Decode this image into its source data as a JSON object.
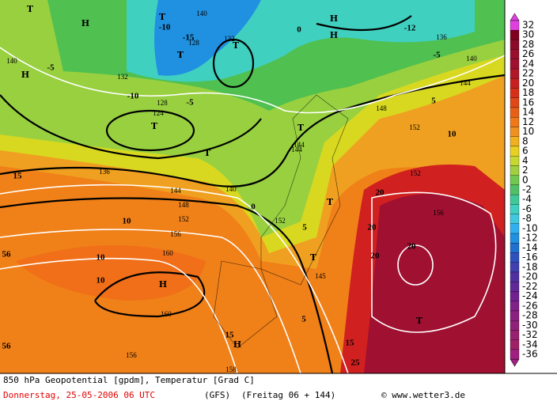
{
  "legend": {
    "labels": [
      "32",
      "30",
      "28",
      "26",
      "24",
      "22",
      "20",
      "18",
      "16",
      "14",
      "12",
      "10",
      "8",
      "6",
      "4",
      "2",
      "0",
      "-2",
      "-4",
      "-6",
      "-8",
      "-10",
      "-12",
      "-14",
      "-16",
      "-18",
      "-20",
      "-22",
      "-24",
      "-26",
      "-28",
      "-30",
      "-32",
      "-34",
      "-36"
    ]
  },
  "map_labels": [
    "T",
    "H",
    "T",
    "-10",
    "140",
    "T",
    "128",
    "T",
    "-15",
    "132",
    "H",
    "-12",
    "136",
    "140",
    "H",
    "-5",
    "132",
    "-10",
    "128",
    "T",
    "124",
    "-5",
    "0",
    "T",
    "144",
    "5",
    "148",
    "144",
    "152",
    "10",
    "T",
    "15",
    "136",
    "140",
    "144",
    "148",
    "152",
    "156",
    "160",
    "H",
    "10",
    "10",
    "20",
    "20",
    "20",
    "T",
    "T",
    "H",
    "15",
    "156",
    "156",
    "20",
    "T",
    "15",
    "25",
    "145",
    "152",
    "0",
    "5",
    "H",
    "-5",
    "140",
    "56",
    "56",
    "158",
    "160",
    "10",
    "5",
    "144",
    "152"
  ],
  "footer": {
    "line1": "850 hPa Geopotential [gpdm], Temperatur [Grad C]",
    "date": "Donnerstag, 25-05-2006  06 UTC",
    "model": "(GFS)",
    "run": "(Freitag 06 + 144)",
    "credit": "© www.wetter3.de"
  }
}
